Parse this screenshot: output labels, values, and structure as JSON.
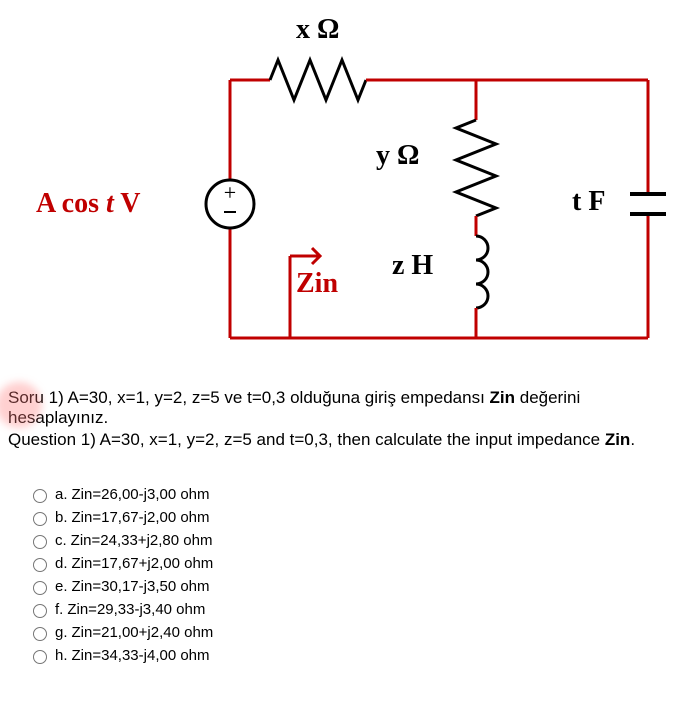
{
  "circuit": {
    "source_label_html": "A cos <i>t</i> V",
    "source_color": "#c00000",
    "r_top_label": "x Ω",
    "r_right_label": "y Ω",
    "l_right_label": "z H",
    "zin_label": "Zin",
    "zin_color": "#c00000",
    "cap_label": "t F",
    "wire_color": "#c00000",
    "wire_width": 3,
    "body_color": "#000000",
    "font_family": "Times New Roman, serif",
    "label_fontsize": 28
  },
  "question": {
    "line1": "Soru 1)  A=30, x=1, y=2, z=5 ve t=0,3 olduğuna giriş empedansı Zin değerini hesaplayınız.",
    "line2": "Question 1)  A=30, x=1, y=2, z=5 and t=0,3, then calculate the input impedance Zin.",
    "bold_word": "Zin"
  },
  "options": [
    {
      "letter": "a.",
      "text": "Zin=26,00-j3,00 ohm"
    },
    {
      "letter": "b.",
      "text": "Zin=17,67-j2,00 ohm"
    },
    {
      "letter": "c.",
      "text": "Zin=24,33+j2,80 ohm"
    },
    {
      "letter": "d.",
      "text": "Zin=17,67+j2,00 ohm"
    },
    {
      "letter": "e.",
      "text": "Zin=30,17-j3,50 ohm"
    },
    {
      "letter": "f.",
      "text": "Zin=29,33-j3,40 ohm"
    },
    {
      "letter": "g.",
      "text": "Zin=21,00+j2,40 ohm"
    },
    {
      "letter": "h.",
      "text": "Zin=34,33-j4,00 ohm"
    }
  ]
}
